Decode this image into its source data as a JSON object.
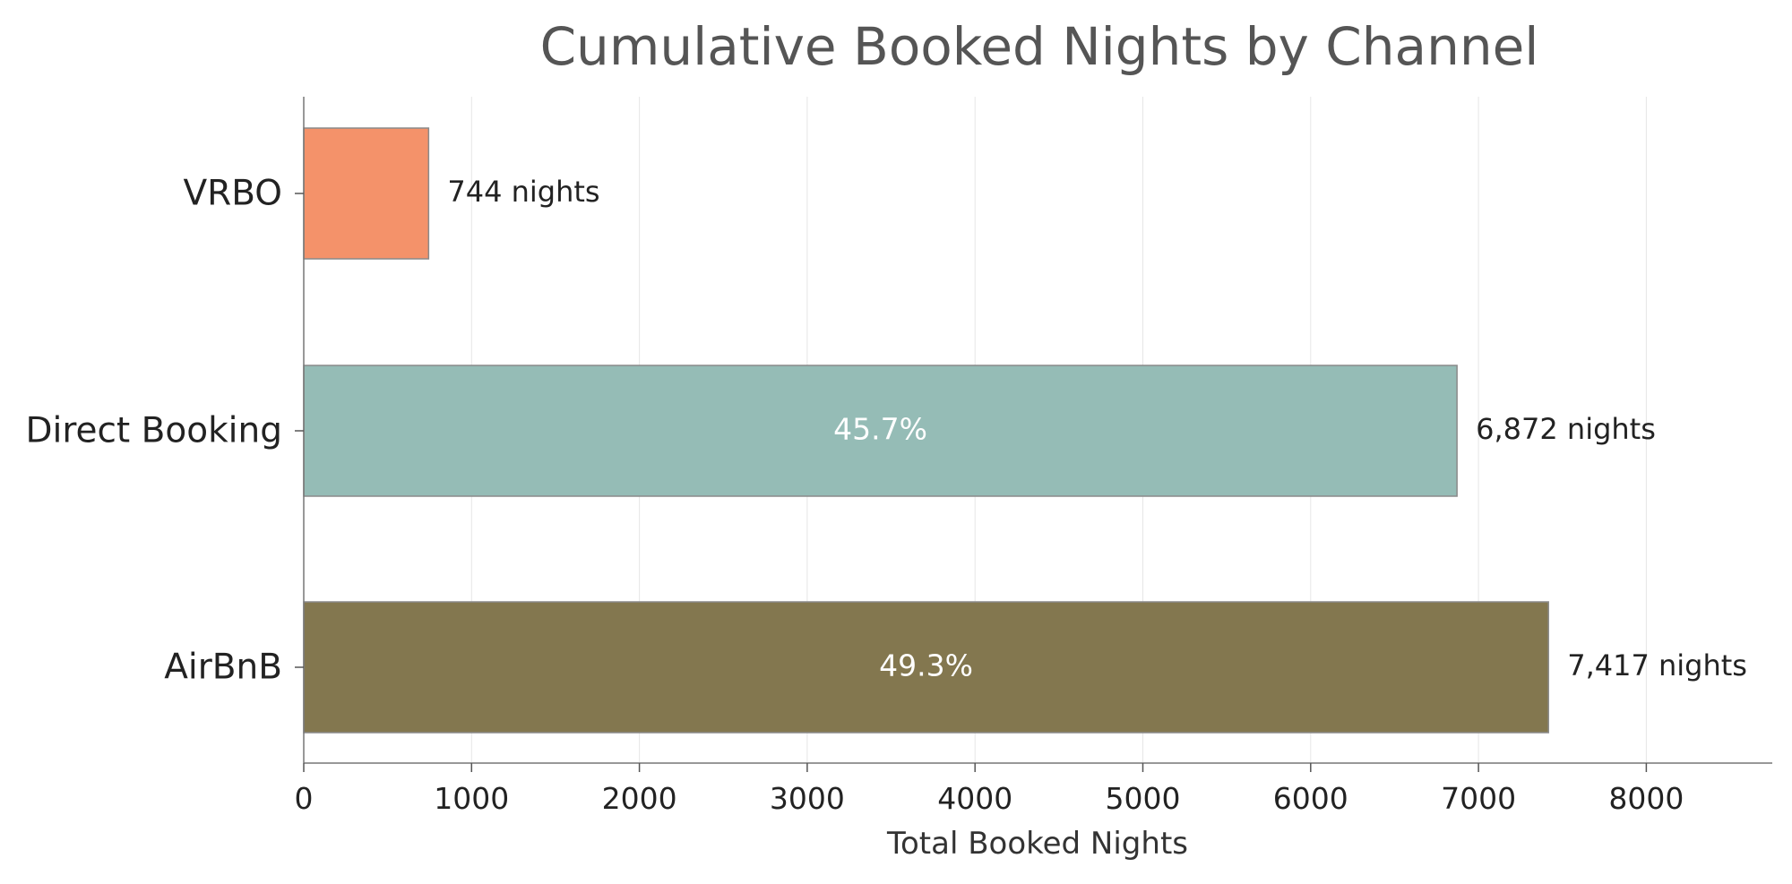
{
  "chart_data": {
    "type": "bar",
    "orientation": "horizontal",
    "title": "Cumulative Booked Nights by Channel",
    "xlabel": "Total Booked Nights",
    "ylabel": "",
    "xlim": [
      0,
      8750
    ],
    "xticks": [
      0,
      1000,
      2000,
      3000,
      4000,
      5000,
      6000,
      7000,
      8000
    ],
    "grid": "vertical",
    "legend": "none",
    "categories": [
      "VRBO",
      "Direct Booking",
      "AirBnB"
    ],
    "values": [
      744,
      6872,
      7417
    ],
    "value_labels": [
      "744 nights",
      "6,872 nights",
      "7,417 nights"
    ],
    "percent_labels": [
      "",
      "45.7%",
      "49.3%"
    ],
    "colors": [
      "#f4926a",
      "#95bcb6",
      "#83774f"
    ]
  }
}
